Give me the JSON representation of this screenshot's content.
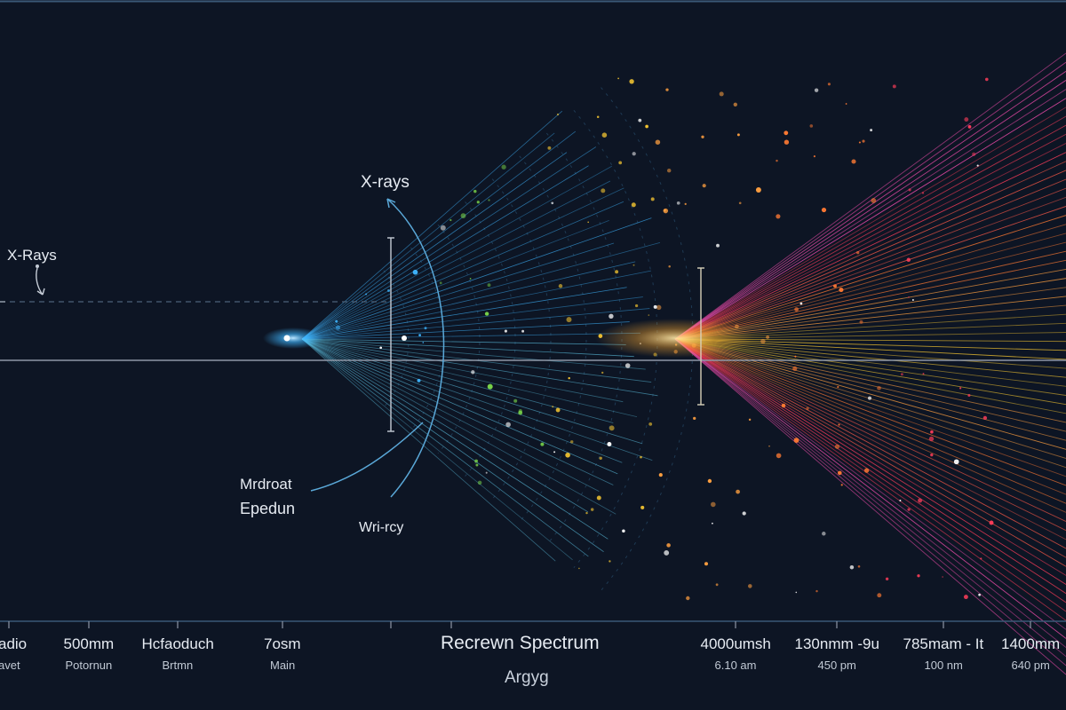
{
  "diagram": {
    "title": "Recrewn Spectrum",
    "subtitle": "Argyg",
    "annotations": {
      "xrays_top": "X-rays",
      "xrays_left": "X-Rays",
      "mid_label_line1": "Mrdroat",
      "mid_label_line2": "Epedun",
      "lower_label": "Wri-rcy"
    },
    "axis_ticks": [
      {
        "label": "adio",
        "sub": "avet"
      },
      {
        "label": "500mm",
        "sub": "Potornun"
      },
      {
        "label": "Hcfaoduch",
        "sub": "Brtmn"
      },
      {
        "label": "7osm",
        "sub": "Main"
      },
      {
        "label": "4000umsh",
        "sub": "6.10 am"
      },
      {
        "label": "130nmm -9u",
        "sub": "450 pm"
      },
      {
        "label": "785mam - It",
        "sub": "100 nm"
      },
      {
        "label": "1400mm",
        "sub": "640 pm"
      }
    ],
    "colors": {
      "background": "#0d1524",
      "beam_blue": "#3fb6ff",
      "beam_green": "#7ad64a",
      "beam_yellow": "#f4c531",
      "beam_orange": "#ff7a33",
      "beam_red": "#ff3d5a",
      "beam_pink": "#ff4fb4",
      "accent_line": "#5aa8d8"
    }
  }
}
